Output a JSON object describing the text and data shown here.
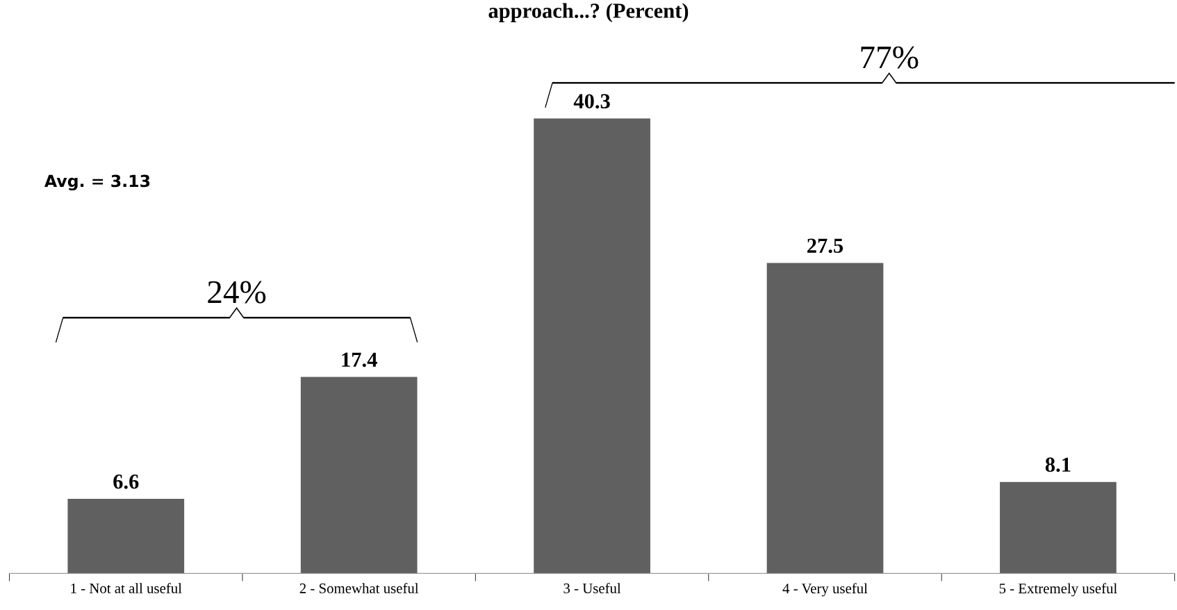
{
  "chart_data": {
    "type": "bar",
    "title": "approach...? (Percent)",
    "categories": [
      "1 - Not at all useful",
      "2 - Somewhat useful",
      "3 - Useful",
      "4 - Very useful",
      "5 - Extremely useful"
    ],
    "values": [
      6.6,
      17.4,
      40.3,
      27.5,
      8.1
    ],
    "color": "#606060",
    "data_labels": true,
    "grid": false,
    "legend": false,
    "annotations": [
      "Avg. = 3.13",
      "24%",
      "77%"
    ]
  }
}
